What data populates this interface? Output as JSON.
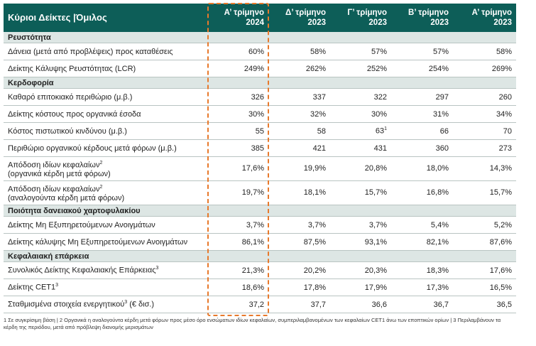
{
  "header": {
    "title": "Κύριοι Δείκτες |Όμιλος",
    "columns": [
      [
        "Α’ τρίμηνο",
        "2024"
      ],
      [
        "Δ’ τρίμηνο",
        "2023"
      ],
      [
        "Γ’ τρίμηνο",
        "2023"
      ],
      [
        "Β’ τρίμηνο",
        "2023"
      ],
      [
        "Α’ τρίμηνο",
        "2023"
      ]
    ]
  },
  "sections": [
    {
      "title": "Ρευστότητα",
      "rows": [
        {
          "label": "Δάνεια (μετά από προβλέψεις) προς καταθέσεις",
          "values": [
            "60%",
            "58%",
            "57%",
            "57%",
            "58%"
          ]
        },
        {
          "label": "Δείκτης Κάλυψης Ρευστότητας (LCR)",
          "values": [
            "249%",
            "262%",
            "252%",
            "254%",
            "269%"
          ]
        }
      ]
    },
    {
      "title": "Κερδοφορία",
      "rows": [
        {
          "label": "Καθαρό επιτοκιακό περιθώριο (μ.β.)",
          "values": [
            "326",
            "337",
            "322",
            "297",
            "260"
          ]
        },
        {
          "label": "Δείκτης κόστους προς οργανικά έσοδα",
          "values": [
            "30%",
            "32%",
            "30%",
            "31%",
            "34%"
          ]
        },
        {
          "label": "Κόστος πιστωτικού κινδύνου (μ.β.)",
          "values": [
            "55",
            "58",
            {
              "text": "63",
              "sup": "1"
            },
            "66",
            "70"
          ]
        },
        {
          "label": "Περιθώριο οργανικού κέρδους μετά φόρων (μ.β.)",
          "values": [
            "385",
            "421",
            "431",
            "360",
            "273"
          ]
        },
        {
          "label": "Απόδοση ιδίων κεφαλαίων",
          "label_sup": "2",
          "label_line2": "(οργανικά κέρδη μετά φόρων)",
          "values": [
            "17,6%",
            "19,9%",
            "20,8%",
            "18,0%",
            "14,3%"
          ]
        },
        {
          "label": "Απόδοση ιδίων κεφαλαίων",
          "label_sup": "2",
          "label_line2": "(αναλογούντα κέρδη μετά φόρων)",
          "values": [
            "19,7%",
            "18,1%",
            "15,7%",
            "16,8%",
            "15,7%"
          ]
        }
      ]
    },
    {
      "title": "Ποιότητα δανειακού χαρτοφυλακίου",
      "rows": [
        {
          "label": "Δείκτης Μη Εξυπηρετούμενων Ανοιγμάτων",
          "values": [
            "3,7%",
            "3,7%",
            "3,7%",
            "5,4%",
            "5,2%"
          ]
        },
        {
          "label": "Δείκτης κάλυψης Μη Εξυπηρετούμενων Ανοιγμάτων",
          "values": [
            "86,1%",
            "87,5%",
            "93,1%",
            "82,1%",
            "87,6%"
          ]
        }
      ]
    },
    {
      "title": "Κεφαλαιακή επάρκεια",
      "rows": [
        {
          "label": "Συνολικός Δείκτης Κεφαλαιακής Επάρκειας",
          "label_sup": "3",
          "values": [
            "21,3%",
            "20,2%",
            "20,3%",
            "18,3%",
            "17,6%"
          ]
        },
        {
          "label": "Δείκτης CET1",
          "label_sup": "3",
          "values": [
            "18,6%",
            "17,8%",
            "17,9%",
            "17,3%",
            "16,5%"
          ]
        },
        {
          "label": "Σταθμισμένα στοιχεία ενεργητικού",
          "label_sup": "3",
          "label_suffix": "(€ δισ.)",
          "values": [
            "37,2",
            "37,7",
            "36,6",
            "36,7",
            "36,5"
          ]
        }
      ]
    }
  ],
  "footnote": "1 Σε συγκρίσιμη βάση | 2 Οργανικά η αναλογούντα κέρδη μετά φόρων προς μέσο όρο ενσώματων ιδίων κεφαλαίων, συμπεριλαμβανομένων των κεφαλαίων CET1 άνω των εποπτικών ορίων | 3 Περιλαμβάνουν τα κέρδη της περιόδου, μετά από πρόβλεψη διανομής μερισμάτων"
}
